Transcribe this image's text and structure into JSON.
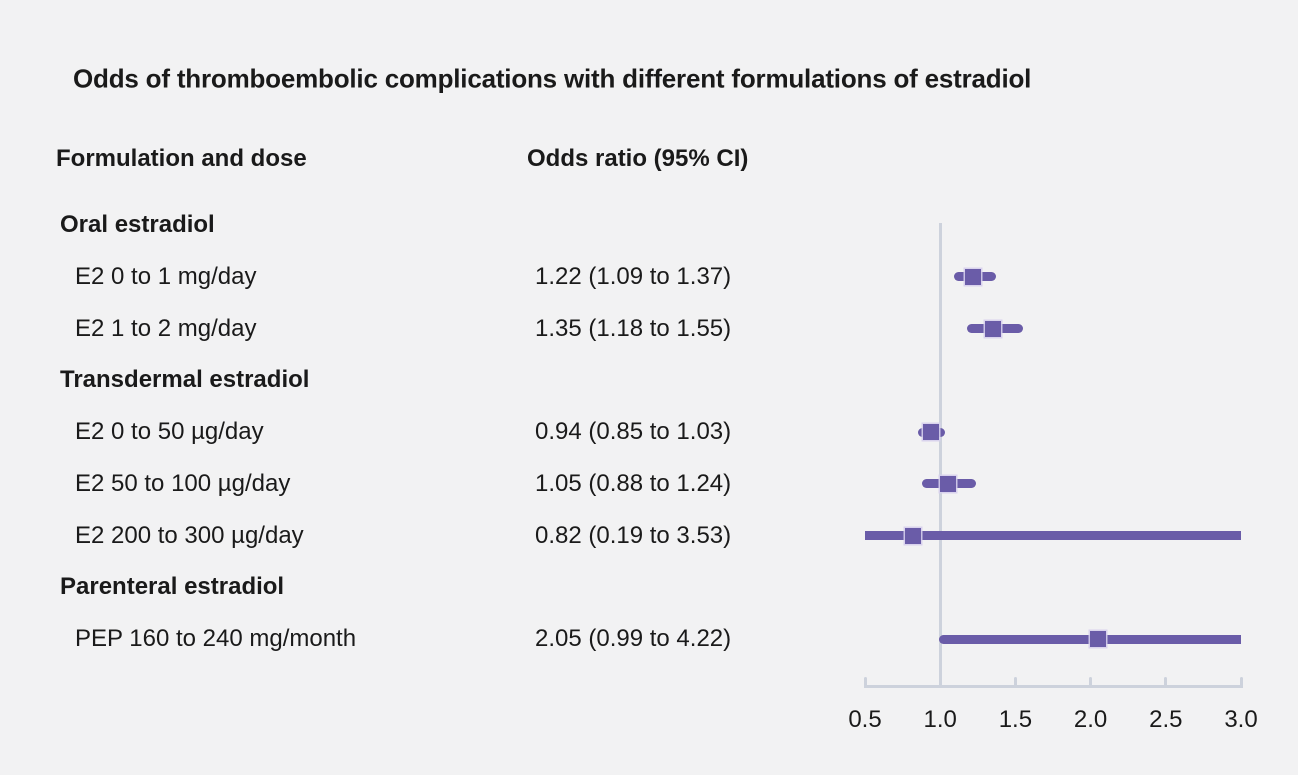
{
  "title": "Odds of thromboembolic complications with different formulations of estradiol",
  "columns": {
    "left": "Formulation and dose",
    "right": "Odds ratio (95% CI)"
  },
  "colors": {
    "background": "#f2f2f3",
    "text": "#1a1a1a",
    "accent_purple": "#6a5ca8",
    "axis_gray": "#cdd2dc"
  },
  "chart_data": {
    "type": "forest",
    "title": "Odds of thromboembolic complications with different formulations of estradiol",
    "xlabel": "Odds ratio",
    "x_axis": {
      "min": 0.5,
      "max": 3.0,
      "tick_labels": [
        "0.5",
        "1.0",
        "1.5",
        "2.0",
        "2.5",
        "3.0"
      ],
      "tick_values": [
        0.5,
        1.0,
        1.5,
        2.0,
        2.5,
        3.0
      ],
      "reference_line": 1.0,
      "grid": false
    },
    "rows": [
      {
        "kind": "group",
        "label": "Oral estradiol"
      },
      {
        "kind": "item",
        "label": "E2 0 to 1 mg/day",
        "or_text": "1.22 (1.09 to 1.37)",
        "or": 1.22,
        "ci_low": 1.09,
        "ci_high": 1.37
      },
      {
        "kind": "item",
        "label": "E2 1 to 2 mg/day",
        "or_text": "1.35 (1.18 to 1.55)",
        "or": 1.35,
        "ci_low": 1.18,
        "ci_high": 1.55
      },
      {
        "kind": "group",
        "label": "Transdermal estradiol"
      },
      {
        "kind": "item",
        "label": "E2 0 to 50 µg/day",
        "or_text": "0.94 (0.85 to 1.03)",
        "or": 0.94,
        "ci_low": 0.85,
        "ci_high": 1.03
      },
      {
        "kind": "item",
        "label": "E2 50 to 100 µg/day",
        "or_text": "1.05 (0.88 to 1.24)",
        "or": 1.05,
        "ci_low": 0.88,
        "ci_high": 1.24
      },
      {
        "kind": "item",
        "label": "E2 200 to 300 µg/day",
        "or_text": "0.82 (0.19 to 3.53)",
        "or": 0.82,
        "ci_low": 0.19,
        "ci_high": 3.53
      },
      {
        "kind": "group",
        "label": "Parenteral estradiol"
      },
      {
        "kind": "item",
        "label": "PEP 160 to 240 mg/month",
        "or_text": "2.05 (0.99 to 4.22)",
        "or": 2.05,
        "ci_low": 0.99,
        "ci_high": 4.22
      }
    ]
  }
}
